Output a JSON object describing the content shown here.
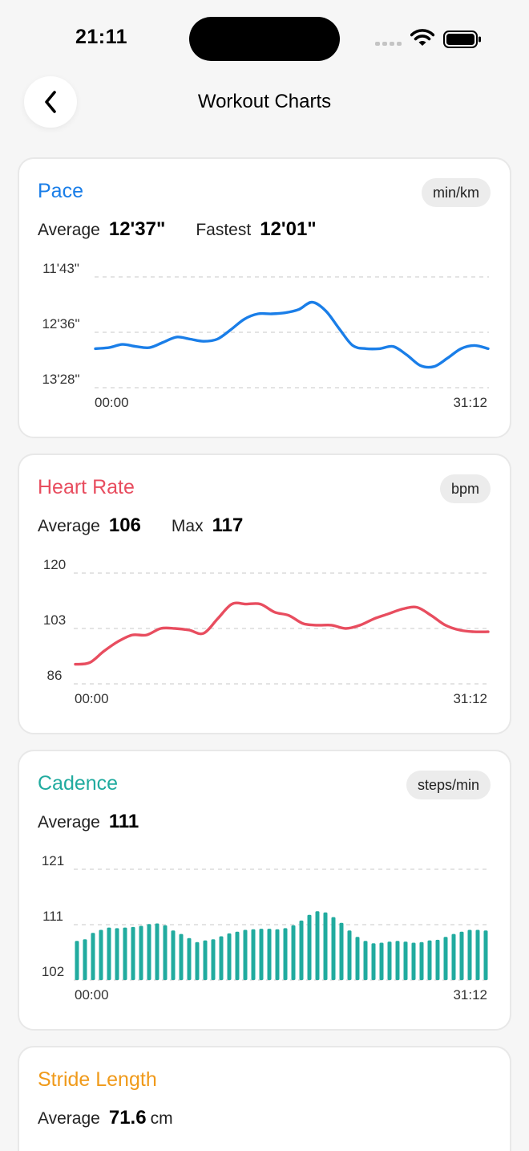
{
  "status_bar": {
    "time": "21:11"
  },
  "header": {
    "title": "Workout Charts"
  },
  "colors": {
    "pace": "#1a7ee8",
    "heart_rate": "#e84d5f",
    "cadence": "#21ab9f",
    "stride": "#f09a1a"
  },
  "pace": {
    "title": "Pace",
    "unit": "min/km",
    "stats": [
      {
        "label": "Average",
        "value": "12'37\""
      },
      {
        "label": "Fastest",
        "value": "12'01\""
      }
    ]
  },
  "heart_rate": {
    "title": "Heart Rate",
    "unit": "bpm",
    "stats": [
      {
        "label": "Average",
        "value": "106"
      },
      {
        "label": "Max",
        "value": "117"
      }
    ]
  },
  "cadence": {
    "title": "Cadence",
    "unit": "steps/min",
    "stats": [
      {
        "label": "Average",
        "value": "111"
      }
    ]
  },
  "stride": {
    "title": "Stride Length",
    "stats": [
      {
        "label": "Average",
        "value": "71.6",
        "unit": "cm"
      }
    ]
  },
  "chart_data": [
    {
      "type": "line",
      "id": "pace",
      "y_tick_labels": [
        "11'43\"",
        "12'36\"",
        "13'28\""
      ],
      "x_tick_labels": [
        "00:00",
        "31:12"
      ],
      "y_domain_seconds": [
        703,
        808
      ],
      "y_inverted": true,
      "grid": true,
      "x_start_seconds": 0,
      "x_end_seconds": 1872,
      "series": [
        {
          "values": [
            771,
            770,
            767,
            769,
            770,
            765,
            760,
            762,
            764,
            762,
            753,
            743,
            738,
            738,
            737,
            734,
            727,
            735,
            752,
            768,
            771,
            771,
            769,
            777,
            787,
            788,
            780,
            771,
            768,
            771
          ]
        }
      ]
    },
    {
      "type": "line",
      "id": "heart_rate",
      "y_tick_labels": [
        "120",
        "103",
        "86"
      ],
      "x_tick_labels": [
        "00:00",
        "31:12"
      ],
      "ylim": [
        86,
        120
      ],
      "grid": true,
      "x_start_seconds": 0,
      "x_end_seconds": 1872,
      "series": [
        {
          "values": [
            92,
            92.5,
            96,
            99,
            101,
            101,
            103,
            103,
            102.5,
            101.5,
            106,
            110.5,
            110.5,
            110.5,
            108,
            107,
            104.5,
            104,
            104,
            103,
            104,
            106,
            107.5,
            109,
            109.5,
            107,
            104,
            102.5,
            102,
            102
          ]
        }
      ]
    },
    {
      "type": "bar",
      "id": "cadence",
      "y_tick_labels": [
        "121",
        "111",
        "102"
      ],
      "x_tick_labels": [
        "00:00",
        "31:12"
      ],
      "ylim": [
        102,
        121
      ],
      "grid": true,
      "x_start_seconds": 0,
      "x_end_seconds": 1872,
      "values": [
        108.7,
        109.0,
        110.1,
        110.6,
        111.0,
        110.9,
        111.0,
        111.1,
        111.3,
        111.6,
        111.7,
        111.4,
        110.5,
        109.9,
        109.2,
        108.5,
        108.8,
        109.0,
        109.5,
        110.0,
        110.3,
        110.6,
        110.7,
        110.8,
        110.8,
        110.7,
        110.9,
        111.4,
        112.2,
        113.2,
        113.8,
        113.6,
        112.8,
        111.8,
        110.5,
        109.4,
        108.7,
        108.3,
        108.4,
        108.6,
        108.7,
        108.6,
        108.4,
        108.5,
        108.8,
        108.9,
        109.4,
        109.9,
        110.3,
        110.6,
        110.6,
        110.5
      ]
    }
  ]
}
